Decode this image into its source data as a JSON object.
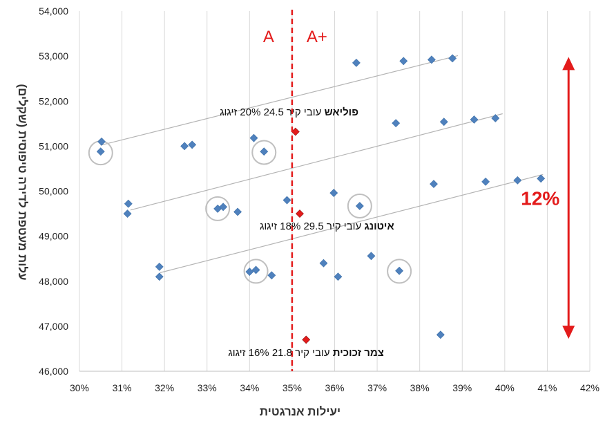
{
  "chart_data": {
    "type": "scatter",
    "xlabel": "יעילות אנרגטית",
    "ylabel": "עלות מעטפת לדירה טיפוסית (שקלים)",
    "xlim": [
      0.3,
      0.42
    ],
    "ylim": [
      46000,
      54000
    ],
    "x_ticks": [
      0.3,
      0.31,
      0.32,
      0.33,
      0.34,
      0.35,
      0.36,
      0.37,
      0.38,
      0.39,
      0.4,
      0.41,
      0.42
    ],
    "x_tick_labels": [
      "30%",
      "31%",
      "32%",
      "33%",
      "34%",
      "35%",
      "36%",
      "37%",
      "38%",
      "39%",
      "40%",
      "41%",
      "42%"
    ],
    "y_ticks": [
      46000,
      47000,
      48000,
      49000,
      50000,
      51000,
      52000,
      53000,
      54000
    ],
    "y_tick_labels": [
      "46,000",
      "47,000",
      "48,000",
      "49,000",
      "50,000",
      "51,000",
      "52,000",
      "53,000",
      "54,000"
    ],
    "grid": "vertical",
    "points_color": "#4f81bd",
    "highlight_color": "#e31b1b",
    "points": [
      {
        "x": 0.3052,
        "y": 51100
      },
      {
        "x": 0.305,
        "y": 50880
      },
      {
        "x": 0.3115,
        "y": 49720
      },
      {
        "x": 0.3113,
        "y": 49500
      },
      {
        "x": 0.3188,
        "y": 48320
      },
      {
        "x": 0.3188,
        "y": 48100
      },
      {
        "x": 0.3247,
        "y": 51000
      },
      {
        "x": 0.3265,
        "y": 51030
      },
      {
        "x": 0.3325,
        "y": 49610
      },
      {
        "x": 0.3338,
        "y": 49650
      },
      {
        "x": 0.3372,
        "y": 49540
      },
      {
        "x": 0.341,
        "y": 51180
      },
      {
        "x": 0.3434,
        "y": 50880
      },
      {
        "x": 0.3488,
        "y": 49800
      },
      {
        "x": 0.34,
        "y": 48210
      },
      {
        "x": 0.3415,
        "y": 48250
      },
      {
        "x": 0.3452,
        "y": 48130
      },
      {
        "x": 0.3574,
        "y": 48400
      },
      {
        "x": 0.3598,
        "y": 49960
      },
      {
        "x": 0.3608,
        "y": 48100
      },
      {
        "x": 0.3651,
        "y": 52850
      },
      {
        "x": 0.3659,
        "y": 49670
      },
      {
        "x": 0.3686,
        "y": 48560
      },
      {
        "x": 0.3744,
        "y": 51510
      },
      {
        "x": 0.3752,
        "y": 48230
      },
      {
        "x": 0.3762,
        "y": 52890
      },
      {
        "x": 0.3828,
        "y": 52920
      },
      {
        "x": 0.3833,
        "y": 50160
      },
      {
        "x": 0.3849,
        "y": 46810
      },
      {
        "x": 0.3857,
        "y": 51540
      },
      {
        "x": 0.3877,
        "y": 52950
      },
      {
        "x": 0.3928,
        "y": 51590
      },
      {
        "x": 0.3955,
        "y": 50210
      },
      {
        "x": 0.3978,
        "y": 51620
      },
      {
        "x": 0.403,
        "y": 50240
      },
      {
        "x": 0.4085,
        "y": 50280
      }
    ],
    "highlighted_points": [
      {
        "x": 0.3508,
        "y": 51320
      },
      {
        "x": 0.3518,
        "y": 49500
      },
      {
        "x": 0.3533,
        "y": 46700
      }
    ],
    "circled_points": [
      {
        "x": 0.305,
        "y": 50850
      },
      {
        "x": 0.3434,
        "y": 50860
      },
      {
        "x": 0.3325,
        "y": 49610
      },
      {
        "x": 0.3659,
        "y": 49670
      },
      {
        "x": 0.3415,
        "y": 48220
      },
      {
        "x": 0.3752,
        "y": 48220
      }
    ],
    "trend_lines": [
      {
        "from": [
          0.305,
          51020
        ],
        "to": [
          0.389,
          53010
        ]
      },
      {
        "from": [
          0.312,
          49580
        ],
        "to": [
          0.3995,
          51720
        ]
      },
      {
        "from": [
          0.319,
          48190
        ],
        "to": [
          0.409,
          50370
        ]
      }
    ],
    "threshold": {
      "x": 0.35,
      "left_label": "A",
      "right_label": "A+"
    },
    "range_arrow": {
      "x": 0.415,
      "y_from": 46750,
      "y_to": 52950,
      "label": "12%"
    },
    "annotations": [
      {
        "bold": "פוליאש",
        "rest": " עובי קיר 24.5 20% זיגוג",
        "x": 0.3656,
        "y": 51680
      },
      {
        "bold": "איטונג",
        "rest": " עובי קיר 29.5 18% זיגוג",
        "x": 0.374,
        "y": 49150
      },
      {
        "bold": "צמר זכוכית",
        "rest": " עובי קיר 21.8 16% זיגוג",
        "x": 0.3716,
        "y": 46340
      }
    ]
  }
}
